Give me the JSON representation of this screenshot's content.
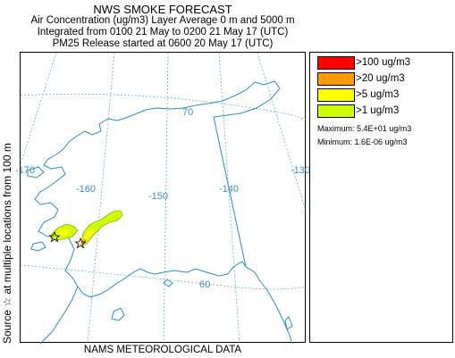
{
  "header": {
    "title": "NWS SMOKE FORECAST",
    "subtitle1": "Air Concentration (ug/m3) Layer Average    0 m and  5000 m",
    "subtitle2": "Integrated from 0100 21 May to 0200 21 May 17 (UTC)",
    "subtitle3": "PM25 Release started at 0600 20 May 17 (UTC)"
  },
  "footer": {
    "text": "NAMS METEOROLOGICAL DATA"
  },
  "side_label": "Source ☆   at multiple locations     from   100 m",
  "map": {
    "longitude_labels": [
      "-170",
      "-160",
      "-150",
      "-140",
      "-130"
    ],
    "latitude_labels": [
      "70",
      "60"
    ],
    "colors": {
      "graticule": "#5aa0c8",
      "coast": "#2a8cc6",
      "star": "#000000"
    }
  },
  "legend": {
    "items": [
      {
        "label": ">100 ug/m3",
        "color": "#ff0000"
      },
      {
        "label": ">20 ug/m3",
        "color": "#ff9900"
      },
      {
        "label": ">5 ug/m3",
        "color": "#ffff00"
      },
      {
        "label": ">1 ug/m3",
        "color": "#ccff00"
      }
    ],
    "maximum": "Maximum: 5.4E+01 ug/m3",
    "minimum": "Minimum: 1.6E-06 ug/m3"
  }
}
